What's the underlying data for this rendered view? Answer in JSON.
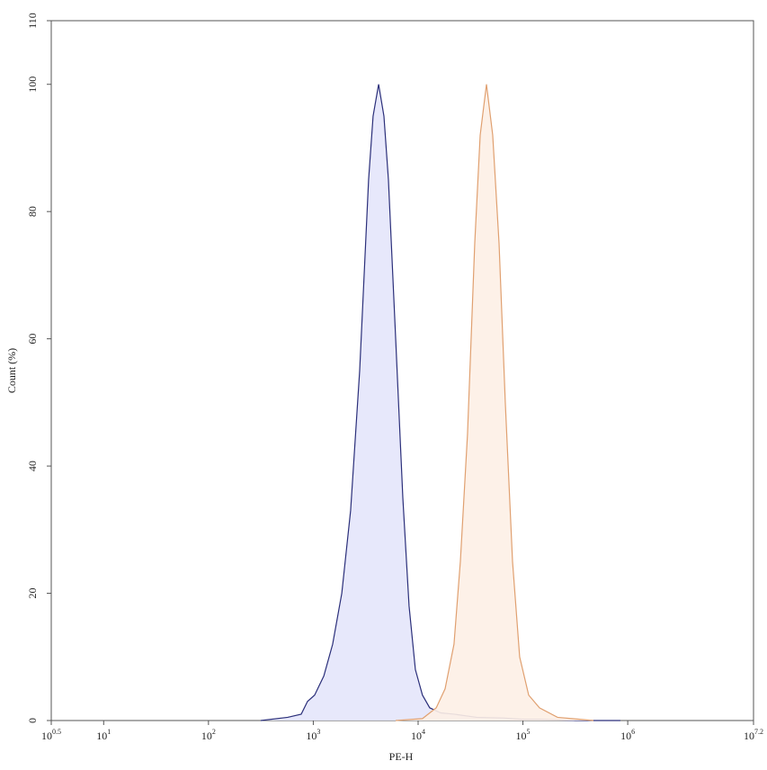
{
  "chart_data": {
    "type": "area",
    "x_label": "PE-H",
    "y_label": "Count (%)",
    "xscale": "log",
    "xlim": [
      3.16227766,
      15848931.92
    ],
    "ylim": [
      0,
      110
    ],
    "xticks": [
      {
        "value": 3.16227766,
        "label": "10",
        "exponent": "0.5"
      },
      {
        "value": 10,
        "label": "10",
        "exponent": "1"
      },
      {
        "value": 100,
        "label": "10",
        "exponent": "2"
      },
      {
        "value": 1000,
        "label": "10",
        "exponent": "3"
      },
      {
        "value": 10000,
        "label": "10",
        "exponent": "4"
      },
      {
        "value": 100000,
        "label": "10",
        "exponent": "5"
      },
      {
        "value": 1000000,
        "label": "10",
        "exponent": "6"
      },
      {
        "value": 15848931.92,
        "label": "10",
        "exponent": "7.2"
      }
    ],
    "yticks": [
      0,
      20,
      40,
      60,
      80,
      100,
      110
    ],
    "series": [
      {
        "color": "#2b2f7a",
        "fill": "#e4e6fb",
        "x": [
          315,
          570,
          767,
          881,
          1030,
          1260,
          1530,
          1870,
          2270,
          2770,
          3370,
          3720,
          4200,
          4720,
          5210,
          6110,
          7150,
          8200,
          9420,
          11000,
          12900,
          16400,
          22000,
          36100,
          65300,
          97000,
          143900,
          317000,
          851000
        ],
        "values": [
          0,
          0.5,
          1,
          3,
          4,
          7,
          12,
          20,
          33,
          55,
          85,
          95,
          100,
          95,
          85,
          60,
          35,
          18,
          8,
          4,
          2,
          1.2,
          1,
          0.5,
          0.4,
          0.2,
          0.2,
          0,
          0
        ]
      },
      {
        "color": "#e0a070",
        "fill": "#fdf0e6",
        "x": [
          6110,
          11000,
          14900,
          18100,
          22000,
          25300,
          29600,
          34700,
          39100,
          44900,
          51500,
          59200,
          67900,
          79600,
          93100,
          113500,
          143900,
          213800,
          471000
        ],
        "values": [
          0,
          0.3,
          2,
          5,
          12,
          25,
          45,
          75,
          92,
          100,
          92,
          75,
          50,
          25,
          10,
          4,
          2,
          0.5,
          0
        ]
      }
    ]
  }
}
